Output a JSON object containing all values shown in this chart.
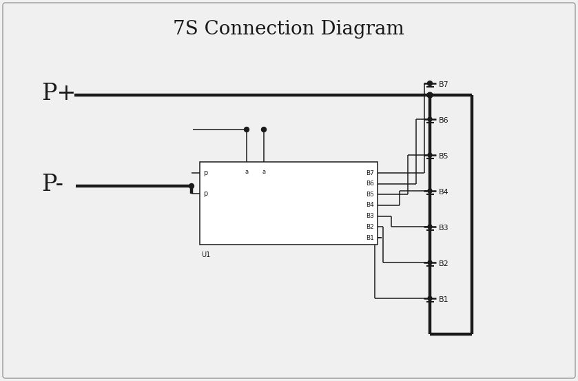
{
  "title": "7S Connection Diagram",
  "title_fontsize": 20,
  "bg_color": "#f0f0f0",
  "line_color": "#1a1a1a",
  "thick_lw": 3.2,
  "thin_lw": 1.1,
  "p_plus_label": "P+",
  "p_minus_label": "P-",
  "battery_labels": [
    "B7",
    "B6",
    "B5",
    "B4",
    "B3",
    "B2",
    "B1"
  ],
  "ic_label_right": [
    "B7",
    "B6",
    "B5",
    "B4",
    "B3",
    "B2",
    "B1"
  ],
  "ic_bottom_label": "U1",
  "ic_pin_left_labels": [
    "p",
    "p"
  ]
}
